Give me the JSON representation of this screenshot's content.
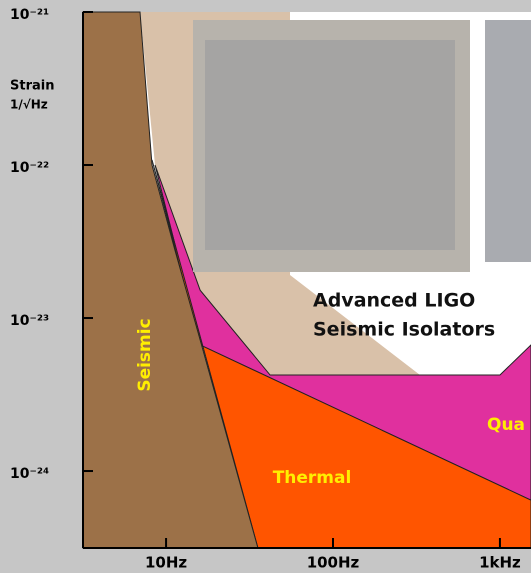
{
  "chart_data": {
    "type": "area",
    "log_x": true,
    "log_y": true,
    "y_label_lines": [
      "Strain",
      "1/√Hz"
    ],
    "caption_lines": [
      "Advanced LIGO",
      "Seismic Isolators"
    ],
    "region_labels": [
      "Seismic",
      "Thermal",
      "Qua"
    ],
    "xlim": [
      3.18,
      1535
    ],
    "ylim": [
      3.14e-25,
      1e-21
    ],
    "xticks": [
      {
        "value": 10,
        "label": "10Hz"
      },
      {
        "value": 100,
        "label": "100Hz"
      },
      {
        "value": 1000,
        "label": "1kHz"
      }
    ],
    "yticks": [
      {
        "value": 1e-21,
        "label": "10⁻²¹"
      },
      {
        "value": 1e-22,
        "label": "10⁻²²"
      },
      {
        "value": 1e-23,
        "label": "10⁻²³"
      },
      {
        "value": 1e-24,
        "label": "10⁻²⁴"
      }
    ],
    "series": [
      {
        "color": "#e0309e",
        "x": [
          8.59,
          16.0,
          42.0,
          1000,
          1535,
          1535,
          16.0
        ],
        "values": [
          1e-22,
          1.52e-23,
          4.24e-24,
          4.24e-24,
          6.67e-24,
          6.45e-25,
          6.67e-24
        ]
      },
      {
        "color": "#ff5500",
        "x": [
          8.24,
          16.0,
          1535,
          1535,
          35.5
        ],
        "values": [
          1.08e-22,
          6.67e-24,
          6.45e-25,
          3.14e-25,
          3.14e-25
        ]
      },
      {
        "color": "#9c7148",
        "x": [
          3.18,
          6.98,
          8.24,
          11.3,
          16.0,
          35.5,
          3.18
        ],
        "values": [
          1e-21,
          1e-21,
          1e-22,
          2.78e-23,
          7.2e-24,
          3.14e-25,
          3.14e-25
        ]
      }
    ]
  }
}
